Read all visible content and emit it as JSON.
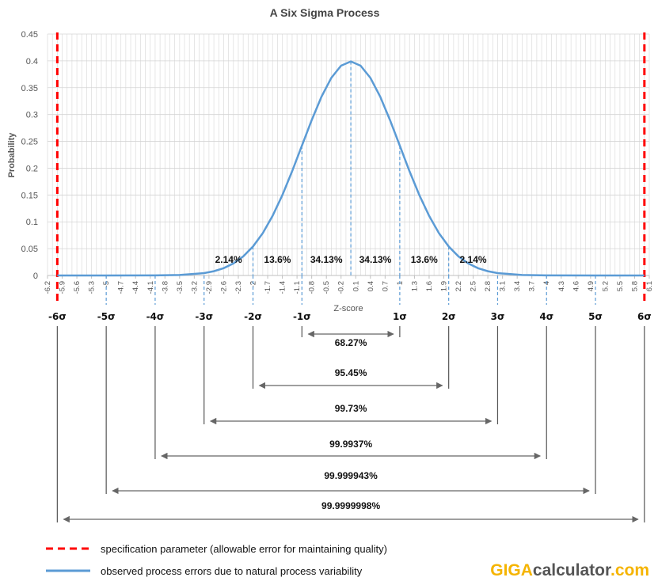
{
  "chart_data": {
    "type": "line",
    "title": "A Six Sigma Process",
    "xlabel": "Z-score",
    "ylabel": "Probability",
    "xlim": [
      -6.2,
      6.1
    ],
    "ylim": [
      0,
      0.45
    ],
    "y_ticks": [
      "0",
      "0.05",
      "0.1",
      "0.15",
      "0.2",
      "0.25",
      "0.3",
      "0.35",
      "0.4",
      "0.45"
    ],
    "x_ticks": [
      "-6.2",
      "-5.9",
      "-5.6",
      "-5.3",
      "-5",
      "-4.7",
      "-4.4",
      "-4.1",
      "-3.8",
      "-3.5",
      "-3.2",
      "-2.9",
      "-2.6",
      "-2.3",
      "-2",
      "-1.7",
      "-1.4",
      "-1.1",
      "-0.8",
      "-0.5",
      "-0.2",
      "0.1",
      "0.4",
      "0.7",
      "1",
      "1.3",
      "1.6",
      "1.9",
      "2.2",
      "2.5",
      "2.8",
      "3.1",
      "3.4",
      "3.7",
      "4",
      "4.3",
      "4.6",
      "4.9",
      "5.2",
      "5.5",
      "5.8",
      "6.1"
    ],
    "grid": true,
    "series": [
      {
        "kind": "normal-curve",
        "color": "#5b9bd5",
        "x": [
          -6,
          -5,
          -4,
          -3.5,
          -3,
          -2.8,
          -2.6,
          -2.4,
          -2.2,
          -2,
          -1.8,
          -1.6,
          -1.4,
          -1.2,
          -1,
          -0.8,
          -0.6,
          -0.4,
          -0.2,
          0,
          0.2,
          0.4,
          0.6,
          0.8,
          1,
          1.2,
          1.4,
          1.6,
          1.8,
          2,
          2.2,
          2.4,
          2.6,
          2.8,
          3,
          3.5,
          4,
          5,
          6
        ],
        "y": [
          0,
          0,
          0.0001,
          0.0009,
          0.0044,
          0.0079,
          0.0136,
          0.0224,
          0.0355,
          0.054,
          0.079,
          0.1109,
          0.1497,
          0.1942,
          0.242,
          0.2897,
          0.3332,
          0.3683,
          0.391,
          0.3989,
          0.391,
          0.3683,
          0.3332,
          0.2897,
          0.242,
          0.1942,
          0.1497,
          0.1109,
          0.079,
          0.054,
          0.0355,
          0.0224,
          0.0136,
          0.0079,
          0.0044,
          0.0009,
          0.0001,
          0,
          0
        ]
      },
      {
        "kind": "specification-limit",
        "color": "#ff0000",
        "x": [
          -6,
          6
        ]
      }
    ],
    "sigma_positions": [
      -6,
      -5,
      -4,
      -3,
      -2,
      -1,
      0,
      1,
      2,
      3,
      4,
      5,
      6
    ],
    "sigma_labels": [
      "-6σ",
      "-5σ",
      "-4σ",
      "-3σ",
      "-2σ",
      "-1σ",
      "1σ",
      "2σ",
      "3σ",
      "4σ",
      "5σ",
      "6σ"
    ],
    "region_labels": [
      "2.14%",
      "13.6%",
      "34.13%",
      "34.13%",
      "13.6%",
      "2.14%"
    ],
    "ranges": [
      {
        "sigma": 1,
        "label": "68.27%"
      },
      {
        "sigma": 2,
        "label": "95.45%"
      },
      {
        "sigma": 3,
        "label": "99.73%"
      },
      {
        "sigma": 4,
        "label": "99.9937%"
      },
      {
        "sigma": 5,
        "label": "99.999943%"
      },
      {
        "sigma": 6,
        "label": "99.9999998%"
      }
    ]
  },
  "legend": {
    "spec_label": "specification parameter (allowable error for maintaining quality)",
    "spec_color": "#ff0000",
    "observed_label": "observed process errors due to natural process variability",
    "observed_color": "#5b9bd5"
  },
  "logo": {
    "part1": "GIGA",
    "part2": "calculator",
    "part3": ".com",
    "color_gold": "#f5b400",
    "color_dark": "#555555"
  }
}
